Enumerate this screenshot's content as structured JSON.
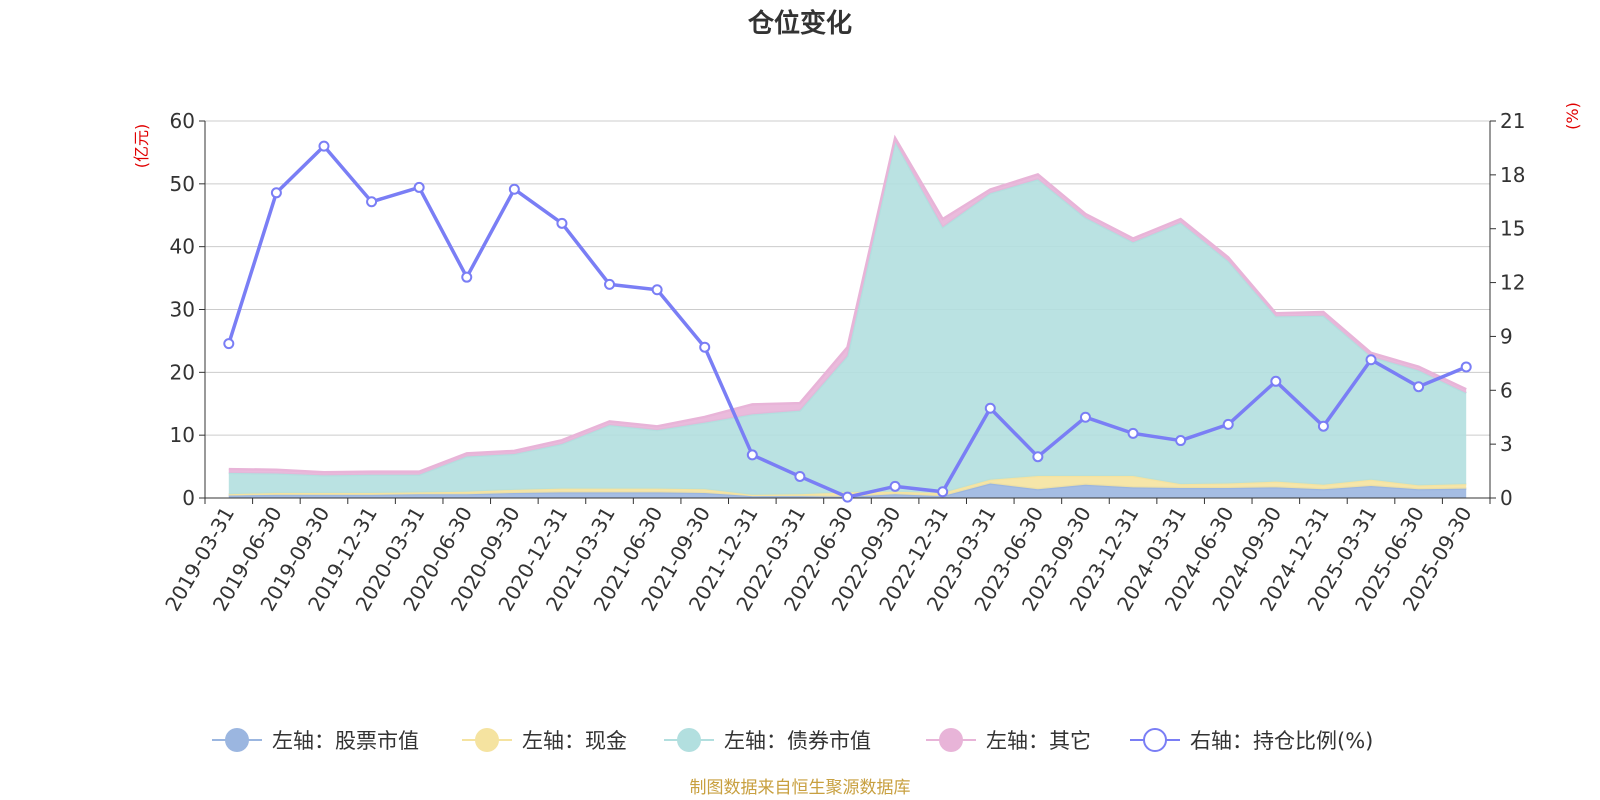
{
  "chart_data": {
    "type": "area",
    "title": "仓位变化",
    "left_unit": "(亿元)",
    "right_unit": "(%)",
    "left_ylim": [
      0,
      60
    ],
    "left_ticks": [
      "0",
      "10",
      "20",
      "30",
      "40",
      "50",
      "60"
    ],
    "right_ylim": [
      0,
      21
    ],
    "right_ticks": [
      "0",
      "3",
      "6",
      "9",
      "12",
      "15",
      "18",
      "21"
    ],
    "categories": [
      "2019-03-31",
      "2019-06-30",
      "2019-09-30",
      "2019-12-31",
      "2020-03-31",
      "2020-06-30",
      "2020-09-30",
      "2020-12-31",
      "2021-03-31",
      "2021-06-30",
      "2021-09-30",
      "2021-12-31",
      "2022-03-31",
      "2022-06-30",
      "2022-09-30",
      "2022-12-31",
      "2023-03-31",
      "2023-06-30",
      "2023-09-30",
      "2023-12-31",
      "2024-03-31",
      "2024-06-30",
      "2024-09-30",
      "2024-12-31",
      "2025-03-31",
      "2025-06-30",
      "2025-09-30"
    ],
    "stacked_series": [
      {
        "name": "左轴：股票市值",
        "color": "#9bb6e0",
        "values": [
          0.4,
          0.5,
          0.5,
          0.5,
          0.6,
          0.6,
          0.8,
          0.9,
          0.9,
          0.9,
          0.8,
          0.3,
          0.3,
          0.2,
          0.6,
          0.3,
          2.3,
          1.4,
          2.1,
          1.7,
          1.6,
          1.6,
          1.7,
          1.4,
          1.9,
          1.4,
          1.5
        ]
      },
      {
        "name": "左轴：现金",
        "color": "#f5e3a0",
        "values": [
          0.2,
          0.3,
          0.3,
          0.3,
          0.3,
          0.4,
          0.5,
          0.6,
          0.6,
          0.6,
          0.6,
          0.2,
          0.3,
          0.7,
          0.4,
          0.5,
          0.6,
          2.1,
          1.4,
          1.8,
          0.6,
          0.7,
          0.9,
          0.7,
          1.0,
          0.6,
          0.7
        ]
      },
      {
        "name": "左轴：债券市值",
        "color": "#b2dfdf",
        "values": [
          3.4,
          3.1,
          2.8,
          2.9,
          2.8,
          5.6,
          5.7,
          7.1,
          10.1,
          9.3,
          10.6,
          12.8,
          13.3,
          21.7,
          55.7,
          42.3,
          45.6,
          47.2,
          41.1,
          37.2,
          41.6,
          35.4,
          26.3,
          26.9,
          19.6,
          18.3,
          14.5
        ]
      },
      {
        "name": "左轴：其它",
        "color": "#e8b4d8",
        "values": [
          0.6,
          0.6,
          0.5,
          0.5,
          0.5,
          0.5,
          0.5,
          0.6,
          0.6,
          0.6,
          0.9,
          1.6,
          1.2,
          1.4,
          0.6,
          1.3,
          0.6,
          0.8,
          0.6,
          0.6,
          0.6,
          0.6,
          0.5,
          0.6,
          0.6,
          0.6,
          0.6
        ]
      }
    ],
    "line_series": {
      "name": "右轴：持仓比例(%)",
      "color": "#7a7ef5",
      "values": [
        8.6,
        17.0,
        19.6,
        16.5,
        17.3,
        12.3,
        17.2,
        15.3,
        11.9,
        11.6,
        8.4,
        2.4,
        1.2,
        0.05,
        0.65,
        0.35,
        5.0,
        2.3,
        4.5,
        3.6,
        3.2,
        4.1,
        6.5,
        4.0,
        7.7,
        6.2,
        7.3
      ]
    },
    "source": "制图数据来自恒生聚源数据库"
  }
}
